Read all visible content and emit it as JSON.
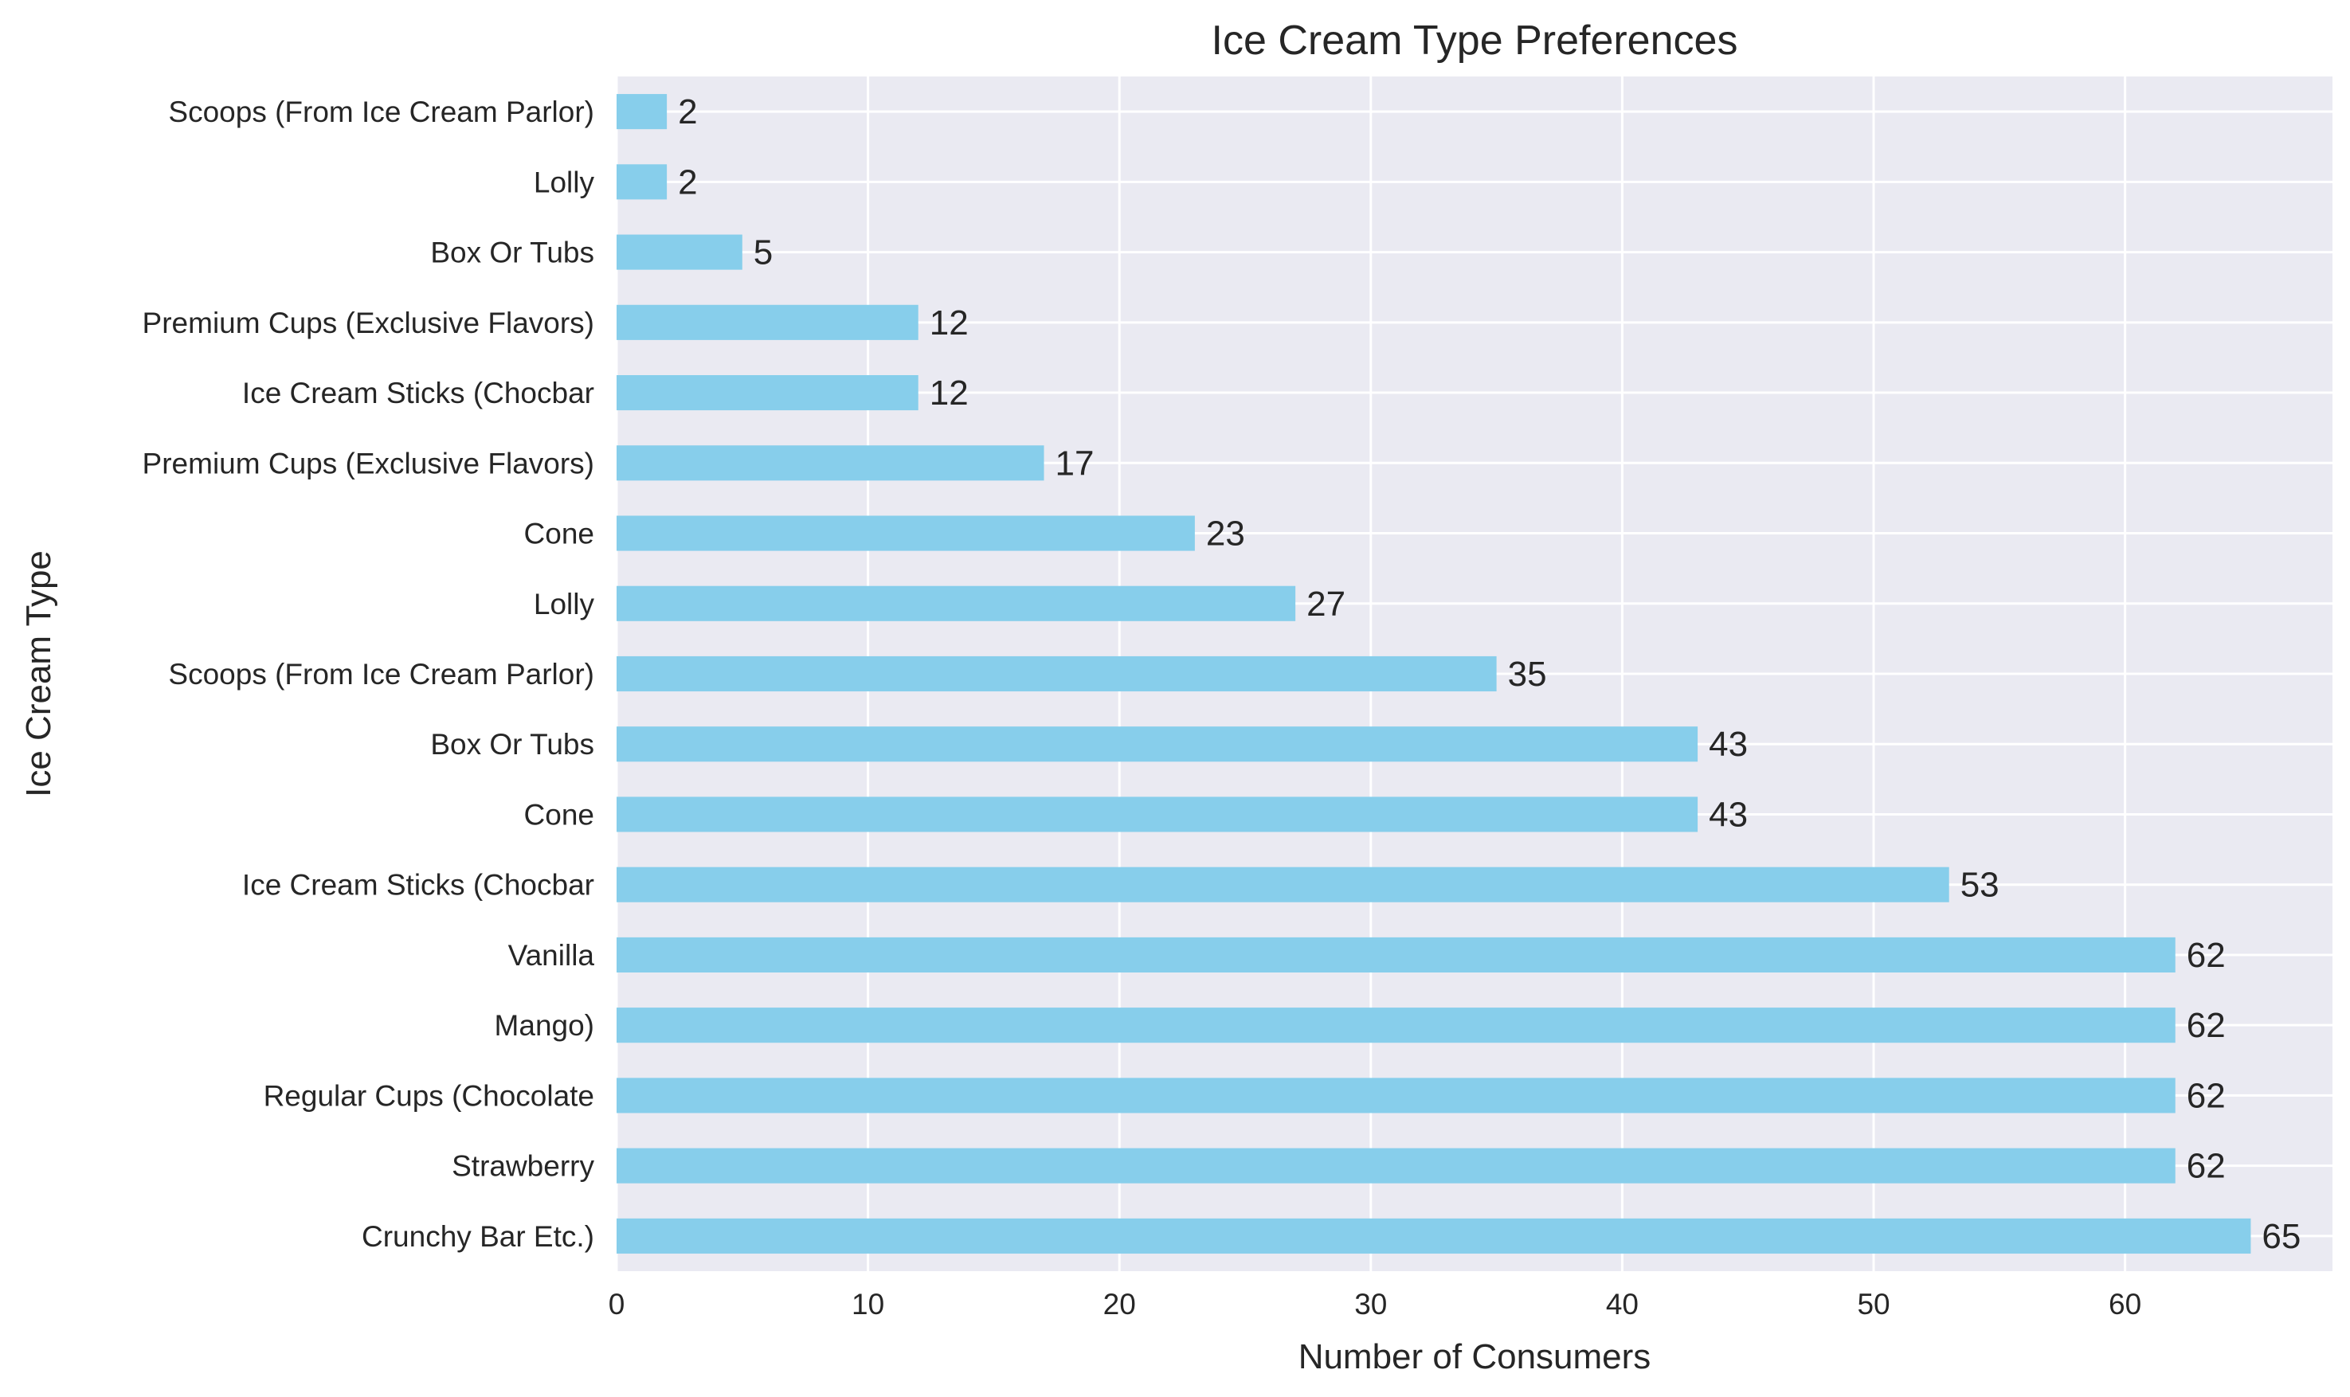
{
  "chart_data": {
    "type": "bar",
    "orientation": "horizontal",
    "title": "Ice Cream Type Preferences",
    "xlabel": "Number of Consumers",
    "ylabel": "Ice Cream Type",
    "categories": [
      "Crunchy Bar Etc.)",
      "Strawberry",
      "Regular Cups (Chocolate",
      "Mango)",
      "Vanilla",
      "Ice Cream Sticks (Chocbar",
      "Cone",
      "Box Or Tubs",
      "Scoops (From Ice Cream Parlor)",
      "Lolly",
      "Cone",
      "Premium Cups (Exclusive Flavors)",
      "Ice Cream Sticks (Chocbar",
      "Premium Cups (Exclusive Flavors)",
      "Box Or Tubs",
      "Lolly",
      "Scoops (From Ice Cream Parlor)"
    ],
    "values": [
      65,
      62,
      62,
      62,
      62,
      53,
      43,
      43,
      35,
      27,
      23,
      17,
      12,
      12,
      5,
      2,
      2
    ],
    "xlim": [
      0,
      68.25
    ],
    "xticks": [
      0,
      10,
      20,
      30,
      40,
      50,
      60
    ],
    "grid": true,
    "colors": {
      "bar": "#87ceeb",
      "plot_background": "#eaeaf2",
      "grid": "#ffffff",
      "text": "#262626"
    }
  }
}
